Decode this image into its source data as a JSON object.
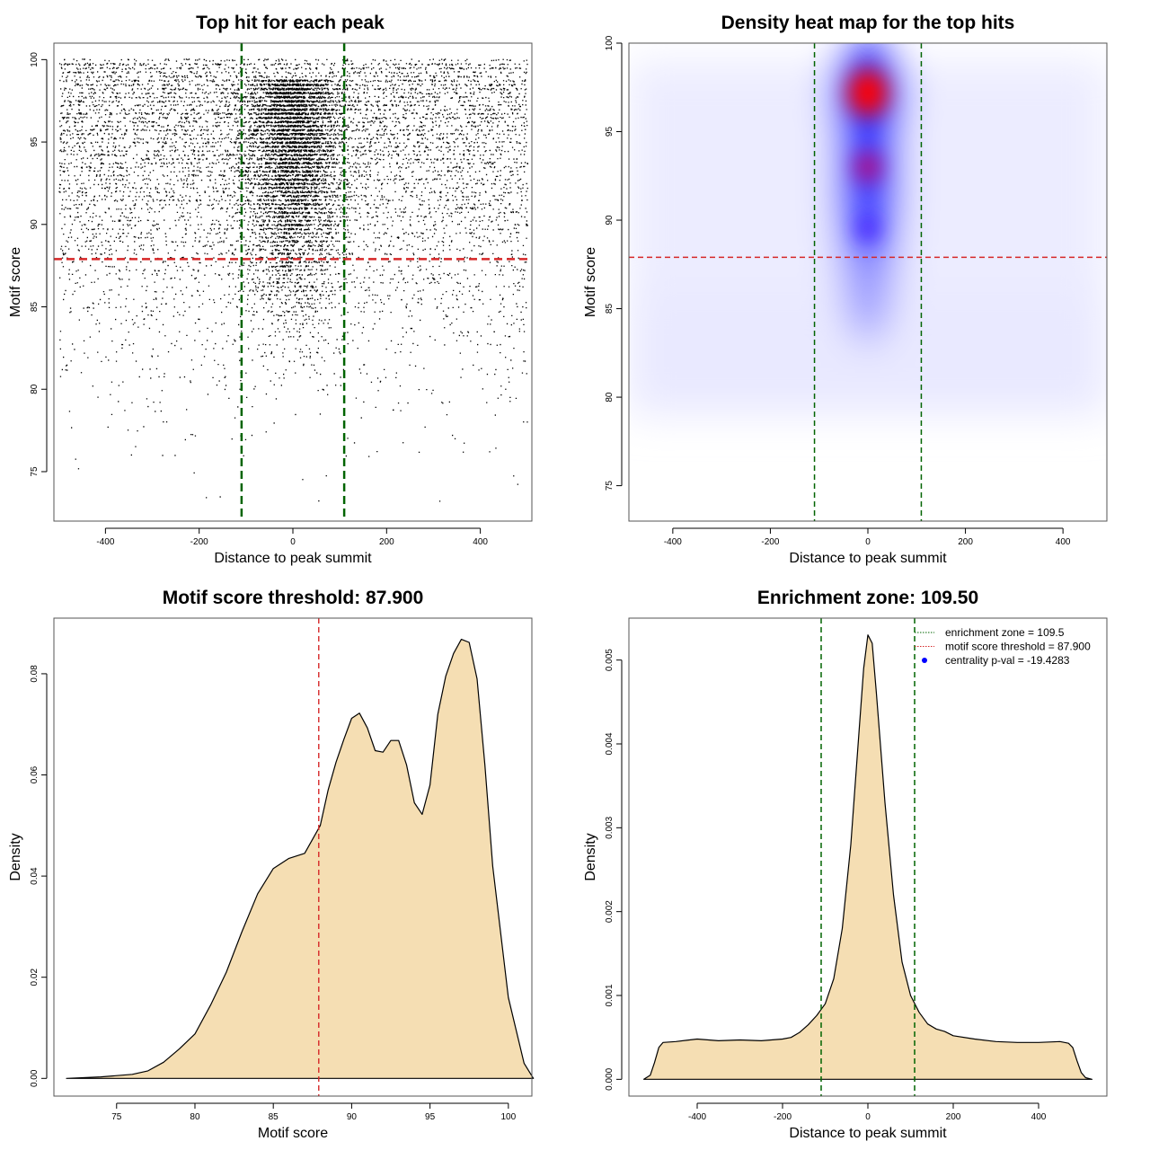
{
  "chart_data": [
    {
      "type": "scatter",
      "title": "Top hit for each peak",
      "xlabel": "Distance to peak summit",
      "ylabel": "Motif score",
      "xlim": [
        -510,
        510
      ],
      "ylim": [
        72,
        101
      ],
      "xticks": [
        "-400",
        "-200",
        "0",
        "200",
        "400"
      ],
      "yticks": [
        "75",
        "80",
        "85",
        "90",
        "95",
        "100"
      ],
      "grid": false,
      "point_color": "#000000",
      "point_cloud": {
        "x_range": [
          -500,
          500
        ],
        "y_range": [
          73,
          100
        ],
        "dense_center": [
          -110,
          110
        ],
        "dense_y_range": [
          84,
          100
        ],
        "approx_points": 12000
      },
      "vlines": [
        -109.5,
        109.5
      ],
      "hline": 87.9,
      "vline_color": "#006400",
      "hline_color": "#d62728"
    },
    {
      "type": "heatmap",
      "title": "Density heat map for the top hits",
      "xlabel": "Distance to peak summit",
      "ylabel": "Motif score",
      "xlim": [
        -490,
        490
      ],
      "ylim": [
        73,
        100
      ],
      "xticks": [
        "-400",
        "-200",
        "0",
        "200",
        "400"
      ],
      "yticks": [
        "75",
        "80",
        "85",
        "90",
        "95",
        "100"
      ],
      "colors": [
        "#ffffff",
        "#0000ff",
        "#ff0000"
      ],
      "hotspots": [
        {
          "x": 0,
          "y": 97.2,
          "intensity": 1.0
        },
        {
          "x": 0,
          "y": 93.0,
          "intensity": 0.72
        },
        {
          "x": 0,
          "y": 89.5,
          "intensity": 0.5
        }
      ],
      "vlines": [
        -109.5,
        109.5
      ],
      "hline": 87.9,
      "vline_color": "#006400",
      "hline_color": "#d62728"
    },
    {
      "type": "area",
      "title": "Motif score threshold: 87.900",
      "xlabel": "Motif score",
      "ylabel": "Density",
      "xlim": [
        71,
        101.5
      ],
      "ylim": [
        -0.0035,
        0.091
      ],
      "xticks": [
        "75",
        "80",
        "85",
        "90",
        "95",
        "100"
      ],
      "yticks": [
        "0.00",
        "0.02",
        "0.04",
        "0.06",
        "0.08"
      ],
      "fill_color": "#f5deb3",
      "x": [
        71.8,
        74,
        76,
        77,
        78,
        79,
        80,
        81,
        82,
        83,
        84,
        85,
        86,
        87,
        88,
        88.5,
        89,
        89.5,
        90,
        90.5,
        91,
        91.5,
        92,
        92.5,
        93,
        93.5,
        94,
        94.5,
        95,
        95.5,
        96,
        96.5,
        97,
        97.5,
        98,
        98.5,
        99,
        100,
        101,
        101.6
      ],
      "y": [
        0,
        0.0003,
        0.0008,
        0.0015,
        0.0032,
        0.0058,
        0.0088,
        0.0145,
        0.021,
        0.029,
        0.0365,
        0.0415,
        0.0435,
        0.0445,
        0.05,
        0.057,
        0.0625,
        0.067,
        0.0712,
        0.0722,
        0.0693,
        0.0648,
        0.0645,
        0.0668,
        0.0668,
        0.062,
        0.0545,
        0.0522,
        0.058,
        0.072,
        0.0795,
        0.084,
        0.0868,
        0.0862,
        0.079,
        0.062,
        0.042,
        0.016,
        0.003,
        0
      ],
      "vline": 87.9,
      "vline_color": "#d62728"
    },
    {
      "type": "area",
      "title": "Enrichment zone: 109.50",
      "xlabel": "Distance to peak summit",
      "ylabel": "Density",
      "xlim": [
        -560,
        560
      ],
      "ylim": [
        -0.0002,
        0.0055
      ],
      "xticks": [
        "-400",
        "-200",
        "0",
        "200",
        "400"
      ],
      "yticks": [
        "0.000",
        "0.001",
        "0.002",
        "0.003",
        "0.004",
        "0.005"
      ],
      "fill_color": "#f5deb3",
      "x": [
        -525,
        -510,
        -500,
        -490,
        -480,
        -450,
        -400,
        -350,
        -300,
        -250,
        -200,
        -180,
        -160,
        -140,
        -120,
        -100,
        -80,
        -60,
        -40,
        -20,
        -10,
        0,
        10,
        20,
        40,
        60,
        80,
        100,
        120,
        140,
        160,
        180,
        200,
        250,
        300,
        350,
        400,
        450,
        470,
        480,
        490,
        500,
        510,
        525
      ],
      "y": [
        0,
        5e-05,
        0.0002,
        0.00038,
        0.00044,
        0.00045,
        0.00048,
        0.00046,
        0.00047,
        0.00046,
        0.00048,
        0.0005,
        0.00056,
        0.00065,
        0.00076,
        0.0009,
        0.0012,
        0.0018,
        0.0028,
        0.0042,
        0.0049,
        0.0053,
        0.0052,
        0.0046,
        0.0033,
        0.0022,
        0.0014,
        0.001,
        0.0008,
        0.00066,
        0.0006,
        0.00057,
        0.00052,
        0.00048,
        0.00045,
        0.00044,
        0.00044,
        0.00045,
        0.00043,
        0.00038,
        0.00022,
        8e-05,
        2e-05,
        0
      ],
      "vlines": [
        -109.5,
        109.5
      ],
      "vline_color": "#006400",
      "legend": {
        "placement": "top-right",
        "entries": [
          {
            "label": "enrichment zone = 109.5",
            "style": "dotted",
            "color": "#006400"
          },
          {
            "label": "motif score threshold = 87.900",
            "style": "dotted",
            "color": "#d62728"
          },
          {
            "label": "centrality p-val = -19.4283",
            "style": "point",
            "color": "#0000ff"
          }
        ]
      }
    }
  ]
}
